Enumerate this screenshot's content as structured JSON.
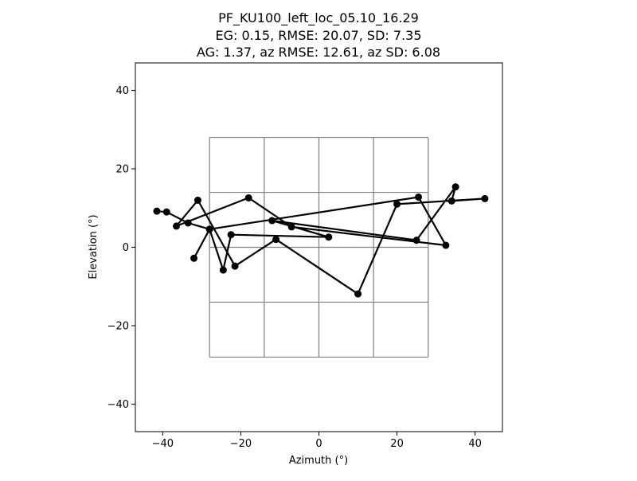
{
  "chart_data": {
    "type": "line",
    "title_lines": [
      "PF_KU100_left_loc_05.10_16.29",
      "EG: 0.15, RMSE: 20.07, SD: 7.35",
      "AG: 1.37, az RMSE: 12.61, az SD: 6.08"
    ],
    "xlabel": "Azimuth (°)",
    "ylabel": "Elevation (°)",
    "xlim": [
      -47,
      47
    ],
    "ylim": [
      -47,
      47
    ],
    "x_ticks": [
      -40,
      -20,
      0,
      20,
      40
    ],
    "y_ticks": [
      -40,
      -20,
      0,
      20,
      40
    ],
    "x_tick_labels": [
      "−40",
      "−20",
      "0",
      "20",
      "40"
    ],
    "y_tick_labels": [
      "−40",
      "−20",
      "0",
      "20",
      "40"
    ],
    "grid": {
      "x_lines": [
        -28,
        -14,
        0,
        14,
        28
      ],
      "y_lines": [
        -28,
        -14,
        0,
        14,
        28
      ],
      "color": "#808080"
    },
    "series_color": "#000000",
    "x": [
      -41.5,
      -39,
      -33.5,
      -28,
      -24.5,
      -22.5,
      2.5,
      -12,
      25,
      35,
      34,
      42.5,
      20,
      10,
      -11,
      -21.5,
      -31,
      -36.5,
      -18,
      -7,
      32.5,
      25.5,
      -28,
      -32
    ],
    "y": [
      9.2,
      9.0,
      6.2,
      4.6,
      -5.8,
      3.2,
      2.6,
      6.8,
      1.8,
      15.4,
      11.8,
      12.4,
      11.0,
      -11.9,
      2.0,
      -4.8,
      12.0,
      5.4,
      12.6,
      5.2,
      0.5,
      12.8,
      4.6,
      -2.8
    ]
  }
}
